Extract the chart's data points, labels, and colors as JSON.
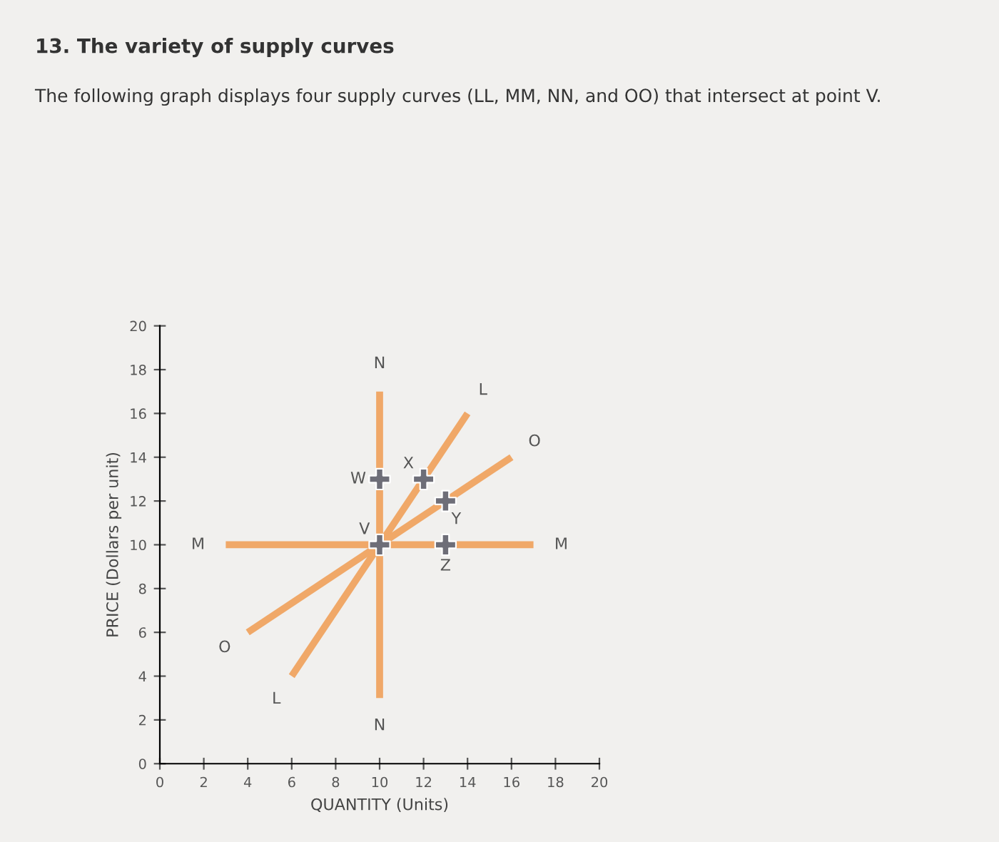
{
  "chart_data": {
    "type": "line",
    "title": "13. The variety of supply curves",
    "subtitle": "The following graph displays four supply curves (LL, MM, NN, and OO) that intersect at point V.",
    "xlabel": "QUANTITY (Units)",
    "ylabel": "PRICE (Dollars per unit)",
    "series": [
      {
        "color": "#f0a868",
        "x": [
          6,
          14
        ],
        "values": [
          4,
          16
        ]
      },
      {
        "color": "#f0a868",
        "x": [
          3,
          17
        ],
        "values": [
          10,
          10
        ]
      },
      {
        "color": "#f0a868",
        "x": [
          10,
          10
        ],
        "values": [
          3,
          17
        ]
      },
      {
        "color": "#f0a868",
        "x": [
          4,
          16
        ],
        "values": [
          6,
          14
        ]
      },
      {
        "type": "scatter",
        "color": "#6e6e78",
        "marker": "cross",
        "x": [
          10,
          10,
          12,
          13,
          13
        ],
        "values": [
          10,
          13,
          13,
          12,
          10
        ]
      }
    ],
    "annotations": [
      {
        "text": "N",
        "x": 10,
        "y": 17
      },
      {
        "text": "N",
        "x": 10,
        "y": 3
      },
      {
        "text": "L",
        "x": 14,
        "y": 16
      },
      {
        "text": "L",
        "x": 6,
        "y": 4
      },
      {
        "text": "O",
        "x": 16,
        "y": 14
      },
      {
        "text": "O",
        "x": 4,
        "y": 6
      },
      {
        "text": "M",
        "x": 3,
        "y": 10
      },
      {
        "text": "M",
        "x": 17,
        "y": 10
      },
      {
        "text": "V",
        "x": 10,
        "y": 10
      },
      {
        "text": "W",
        "x": 10,
        "y": 13
      },
      {
        "text": "X",
        "x": 12,
        "y": 13
      },
      {
        "text": "Y",
        "x": 13,
        "y": 12
      },
      {
        "text": "Z",
        "x": 13,
        "y": 10
      }
    ],
    "xlim": [
      0,
      20
    ],
    "ylim": [
      0,
      20
    ],
    "xticks": [
      0,
      2,
      4,
      6,
      8,
      10,
      12,
      14,
      16,
      18,
      20
    ],
    "yticks": [
      0,
      2,
      4,
      6,
      8,
      10,
      12,
      14,
      16,
      18,
      20
    ],
    "grid": false,
    "legend": false
  }
}
